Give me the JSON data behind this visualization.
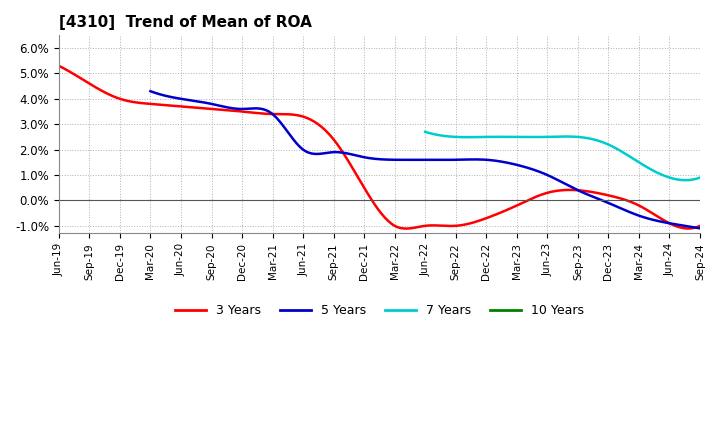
{
  "title": "[4310]  Trend of Mean of ROA",
  "background_color": "#ffffff",
  "plot_bg_color": "#ffffff",
  "grid_color": "#b0b0b0",
  "ylim": [
    -0.013,
    0.065
  ],
  "yticks": [
    -0.01,
    0.0,
    0.01,
    0.02,
    0.03,
    0.04,
    0.05,
    0.06
  ],
  "ytick_labels": [
    "-1.0%",
    "0.0%",
    "1.0%",
    "2.0%",
    "3.0%",
    "4.0%",
    "5.0%",
    "6.0%"
  ],
  "x_tick_labels": [
    "Jun-19",
    "Sep-19",
    "Dec-19",
    "Mar-20",
    "Jun-20",
    "Sep-20",
    "Dec-20",
    "Mar-21",
    "Jun-21",
    "Sep-21",
    "Dec-21",
    "Mar-22",
    "Jun-22",
    "Sep-22",
    "Dec-22",
    "Mar-23",
    "Jun-23",
    "Sep-23",
    "Dec-23",
    "Mar-24",
    "Jun-24",
    "Sep-24"
  ],
  "x_tick_positions": [
    0,
    3,
    6,
    9,
    12,
    15,
    18,
    21,
    24,
    27,
    30,
    33,
    36,
    39,
    42,
    45,
    48,
    51,
    54,
    57,
    60,
    63
  ],
  "series_3y_x": [
    0,
    3,
    6,
    9,
    12,
    15,
    18,
    21,
    24,
    27,
    30,
    33,
    36,
    39,
    42,
    45,
    48,
    51,
    54,
    57,
    60,
    63
  ],
  "series_3y_y": [
    0.053,
    0.046,
    0.04,
    0.038,
    0.037,
    0.036,
    0.035,
    0.034,
    0.033,
    0.024,
    0.005,
    -0.01,
    -0.01,
    -0.01,
    -0.007,
    -0.002,
    0.003,
    0.004,
    0.002,
    -0.002,
    -0.009,
    -0.01
  ],
  "series_5y_x": [
    9,
    12,
    15,
    18,
    21,
    24,
    27,
    30,
    33,
    36,
    39,
    42,
    45,
    48,
    51,
    54,
    57,
    60,
    63
  ],
  "series_5y_y": [
    0.043,
    0.04,
    0.038,
    0.036,
    0.034,
    0.02,
    0.019,
    0.017,
    0.016,
    0.016,
    0.016,
    0.016,
    0.014,
    0.01,
    0.004,
    -0.001,
    -0.006,
    -0.009,
    -0.011
  ],
  "series_7y_x": [
    36,
    39,
    42,
    45,
    48,
    51,
    54,
    57,
    60,
    63
  ],
  "series_7y_y": [
    0.027,
    0.025,
    0.025,
    0.025,
    0.025,
    0.025,
    0.022,
    0.015,
    0.009,
    0.009
  ],
  "series_3y_color": "#ff0000",
  "series_5y_color": "#0000cc",
  "series_7y_color": "#00cccc",
  "series_10y_color": "#008000"
}
